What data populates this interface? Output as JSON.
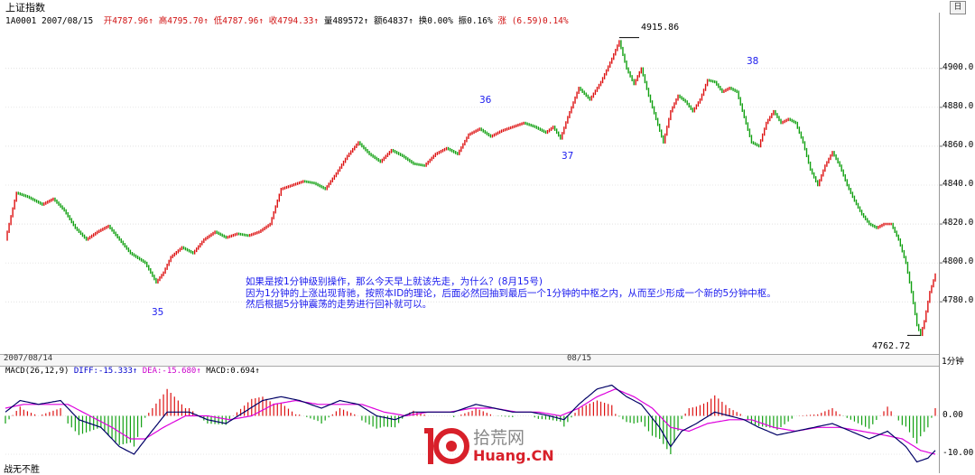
{
  "window": {
    "title": "上证指数",
    "restore_button_label": "日"
  },
  "info_bar": {
    "code_date": "1A0001 2007/08/15",
    "open_label": "开",
    "open": "4787.96",
    "high_label": "高",
    "high": "4795.70",
    "low_label": "低",
    "low": "4787.96",
    "close_label": "收",
    "close": "4794.33",
    "volume_label": "量",
    "volume": "489572",
    "amount_label": "额",
    "amount": "64837",
    "turnover_label": "换",
    "turnover": "0.00%",
    "amplitude_label": "振",
    "amplitude": "0.16%",
    "change_label": "涨",
    "change": "(6.59)0.14%"
  },
  "dates": {
    "left": "2007/08/14",
    "mid": "08/15"
  },
  "period_label": "1分钟",
  "macd_info": {
    "name": "MACD(26,12,9)",
    "diff": "DIFF:-15.333",
    "dea": "DEA:-15.680",
    "macd": "MACD:0.694"
  },
  "annotation": {
    "line1": "如果是按1分钟级别操作，那么今天早上就该先走，为什么？(8月15号)",
    "line2": "因为1分钟的上涨出现背驰，按照本ID的理论，后面必然回抽到最后一个1分钟的中枢之内，从而至少形成一个新的5分钟中枢。",
    "line3": "然后根据5分钟震荡的走势进行回补就可以。"
  },
  "wave_labels": {
    "w35": "35",
    "w36": "36",
    "w37": "37",
    "w38": "38"
  },
  "peak_label": "4915.86",
  "trough_label": "4762.72",
  "footer": "战无不胜",
  "logo": {
    "top": "拾荒网",
    "bottom": "Huang.CN"
  },
  "colors": {
    "up": "#dd1111",
    "down": "#11a011",
    "diff": "#000066",
    "dea": "#dd00dd",
    "annotation": "#1a1aee"
  },
  "chart_data": [
    {
      "type": "candlestick",
      "title": "上证指数 1分钟",
      "ylim": [
        4755,
        4925
      ],
      "yticks": [
        4780,
        4800,
        4820,
        4840,
        4860,
        4880,
        4900
      ],
      "close_path": [
        [
          0,
          4812
        ],
        [
          6,
          4836
        ],
        [
          12,
          4834
        ],
        [
          20,
          4830
        ],
        [
          26,
          4833
        ],
        [
          32,
          4827
        ],
        [
          38,
          4818
        ],
        [
          44,
          4812
        ],
        [
          50,
          4816
        ],
        [
          56,
          4819
        ],
        [
          62,
          4812
        ],
        [
          68,
          4805
        ],
        [
          76,
          4800
        ],
        [
          82,
          4790
        ],
        [
          86,
          4795
        ],
        [
          90,
          4803
        ],
        [
          96,
          4808
        ],
        [
          102,
          4805
        ],
        [
          108,
          4812
        ],
        [
          114,
          4816
        ],
        [
          120,
          4813
        ],
        [
          126,
          4815
        ],
        [
          132,
          4814
        ],
        [
          138,
          4816
        ],
        [
          144,
          4820
        ],
        [
          150,
          4838
        ],
        [
          156,
          4840
        ],
        [
          162,
          4842
        ],
        [
          168,
          4841
        ],
        [
          174,
          4838
        ],
        [
          180,
          4846
        ],
        [
          186,
          4855
        ],
        [
          192,
          4862
        ],
        [
          198,
          4856
        ],
        [
          204,
          4852
        ],
        [
          210,
          4858
        ],
        [
          216,
          4855
        ],
        [
          222,
          4851
        ],
        [
          228,
          4850
        ],
        [
          234,
          4856
        ],
        [
          240,
          4859
        ],
        [
          246,
          4856
        ],
        [
          252,
          4866
        ],
        [
          258,
          4869
        ],
        [
          264,
          4865
        ],
        [
          270,
          4868
        ],
        [
          276,
          4870
        ],
        [
          282,
          4872
        ],
        [
          288,
          4870
        ],
        [
          294,
          4867
        ],
        [
          298,
          4870
        ],
        [
          302,
          4864
        ],
        [
          306,
          4875
        ],
        [
          312,
          4890
        ],
        [
          318,
          4884
        ],
        [
          324,
          4893
        ],
        [
          330,
          4905
        ],
        [
          334,
          4914
        ],
        [
          338,
          4900
        ],
        [
          342,
          4892
        ],
        [
          346,
          4900
        ],
        [
          350,
          4886
        ],
        [
          354,
          4874
        ],
        [
          358,
          4862
        ],
        [
          362,
          4878
        ],
        [
          366,
          4886
        ],
        [
          370,
          4883
        ],
        [
          374,
          4878
        ],
        [
          378,
          4884
        ],
        [
          382,
          4894
        ],
        [
          386,
          4893
        ],
        [
          390,
          4888
        ],
        [
          394,
          4890
        ],
        [
          398,
          4888
        ],
        [
          402,
          4875
        ],
        [
          406,
          4862
        ],
        [
          410,
          4860
        ],
        [
          414,
          4872
        ],
        [
          418,
          4878
        ],
        [
          422,
          4872
        ],
        [
          426,
          4874
        ],
        [
          430,
          4872
        ],
        [
          434,
          4862
        ],
        [
          438,
          4848
        ],
        [
          442,
          4840
        ],
        [
          446,
          4850
        ],
        [
          450,
          4857
        ],
        [
          454,
          4850
        ],
        [
          458,
          4840
        ],
        [
          462,
          4832
        ],
        [
          466,
          4825
        ],
        [
          470,
          4820
        ],
        [
          474,
          4818
        ],
        [
          478,
          4820
        ],
        [
          482,
          4820
        ],
        [
          486,
          4812
        ],
        [
          490,
          4800
        ],
        [
          493,
          4785
        ],
        [
          496,
          4768
        ],
        [
          498,
          4763
        ],
        [
          500,
          4770
        ],
        [
          503,
          4785
        ],
        [
          506,
          4794
        ]
      ],
      "n_points": 507,
      "peak": {
        "value": 4915.86,
        "index": 334
      },
      "trough": {
        "value": 4762.72,
        "index": 498
      },
      "wave_marks": [
        {
          "label": "35",
          "index": 82
        },
        {
          "label": "36",
          "index": 264
        },
        {
          "label": "37",
          "index": 302
        },
        {
          "label": "38",
          "index": 408
        }
      ]
    },
    {
      "type": "macd",
      "title": "MACD(26,12,9)",
      "ylim": [
        -14,
        10
      ],
      "yticks": [
        0,
        -10
      ],
      "tick_labels": [
        "0.00",
        "-10.00"
      ],
      "diff_path": [
        [
          0,
          1
        ],
        [
          8,
          4
        ],
        [
          18,
          3
        ],
        [
          30,
          4
        ],
        [
          40,
          -1
        ],
        [
          52,
          -3
        ],
        [
          62,
          -8
        ],
        [
          70,
          -10
        ],
        [
          78,
          -5
        ],
        [
          88,
          1
        ],
        [
          100,
          1
        ],
        [
          110,
          -1
        ],
        [
          120,
          -2
        ],
        [
          130,
          1
        ],
        [
          140,
          4
        ],
        [
          150,
          5
        ],
        [
          160,
          4
        ],
        [
          172,
          2
        ],
        [
          182,
          4
        ],
        [
          192,
          3
        ],
        [
          202,
          0
        ],
        [
          212,
          -1
        ],
        [
          222,
          1
        ],
        [
          234,
          1
        ],
        [
          244,
          1
        ],
        [
          256,
          3
        ],
        [
          266,
          2
        ],
        [
          276,
          1
        ],
        [
          286,
          1
        ],
        [
          296,
          0
        ],
        [
          304,
          -1
        ],
        [
          312,
          3
        ],
        [
          322,
          7
        ],
        [
          330,
          8
        ],
        [
          338,
          5
        ],
        [
          346,
          3
        ],
        [
          356,
          -3
        ],
        [
          362,
          -8
        ],
        [
          368,
          -4
        ],
        [
          376,
          -2
        ],
        [
          386,
          1
        ],
        [
          394,
          0
        ],
        [
          402,
          -1
        ],
        [
          410,
          -3
        ],
        [
          420,
          -5
        ],
        [
          430,
          -4
        ],
        [
          440,
          -3
        ],
        [
          450,
          -2
        ],
        [
          460,
          -4
        ],
        [
          470,
          -6
        ],
        [
          480,
          -4
        ],
        [
          490,
          -8
        ],
        [
          496,
          -12
        ],
        [
          502,
          -11
        ],
        [
          506,
          -9
        ]
      ],
      "dea_path": [
        [
          0,
          2
        ],
        [
          10,
          3
        ],
        [
          22,
          3
        ],
        [
          34,
          3
        ],
        [
          46,
          0
        ],
        [
          58,
          -3
        ],
        [
          68,
          -6
        ],
        [
          76,
          -6
        ],
        [
          86,
          -3
        ],
        [
          98,
          0
        ],
        [
          110,
          0
        ],
        [
          122,
          -1
        ],
        [
          134,
          0
        ],
        [
          146,
          3
        ],
        [
          158,
          4
        ],
        [
          170,
          3
        ],
        [
          182,
          3
        ],
        [
          194,
          3
        ],
        [
          206,
          1
        ],
        [
          218,
          0
        ],
        [
          230,
          1
        ],
        [
          242,
          1
        ],
        [
          254,
          2
        ],
        [
          266,
          2
        ],
        [
          278,
          1
        ],
        [
          290,
          1
        ],
        [
          302,
          0
        ],
        [
          312,
          2
        ],
        [
          322,
          5
        ],
        [
          332,
          7
        ],
        [
          342,
          5
        ],
        [
          352,
          2
        ],
        [
          362,
          -3
        ],
        [
          372,
          -4
        ],
        [
          382,
          -2
        ],
        [
          394,
          -1
        ],
        [
          406,
          -1
        ],
        [
          418,
          -3
        ],
        [
          430,
          -4
        ],
        [
          442,
          -3
        ],
        [
          454,
          -3
        ],
        [
          466,
          -4
        ],
        [
          478,
          -5
        ],
        [
          488,
          -6
        ],
        [
          498,
          -9
        ],
        [
          506,
          -10
        ]
      ]
    }
  ]
}
